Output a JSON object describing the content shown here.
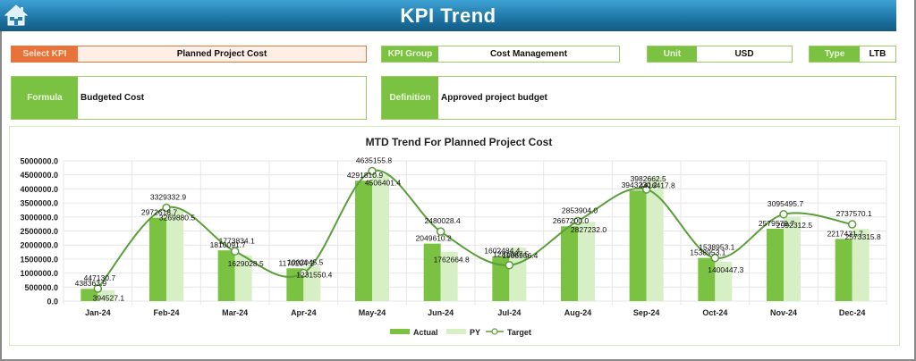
{
  "header": {
    "title": "KPI Trend",
    "home_icon": "home-icon"
  },
  "filters": {
    "select_kpi": {
      "label": "Select KPI",
      "value": "Planned Project Cost"
    },
    "kpi_group": {
      "label": "KPI Group",
      "value": "Cost Management"
    },
    "unit": {
      "label": "Unit",
      "value": "USD"
    },
    "type": {
      "label": "Type",
      "value": "LTB"
    }
  },
  "details": {
    "formula": {
      "label": "Formula",
      "value": "Budgeted Cost"
    },
    "definition": {
      "label": "Definition",
      "value": "Approved project budget"
    }
  },
  "colors": {
    "actual": "#7cc242",
    "py": "#d6efc4",
    "target": "#5a9e3a",
    "header": "#1f78a8",
    "kpi_accent": "#e8733a"
  },
  "chart_data": {
    "type": "bar",
    "title": "MTD Trend For Planned Project Cost",
    "xlabel": "",
    "ylabel": "",
    "ylim": [
      0,
      5000000
    ],
    "yticks": [
      "0.0",
      "500000.0",
      "1000000.0",
      "1500000.0",
      "2000000.0",
      "2500000.0",
      "3000000.0",
      "3500000.0",
      "4000000.0",
      "4500000.0",
      "5000000.0"
    ],
    "grid": true,
    "legend_position": "bottom",
    "categories": [
      "Jan-24",
      "Feb-24",
      "Mar-24",
      "Apr-24",
      "May-24",
      "Jun-24",
      "Jul-24",
      "Aug-24",
      "Sep-24",
      "Oct-24",
      "Nov-24",
      "Dec-24"
    ],
    "series": [
      {
        "name": "Actual",
        "kind": "bar",
        "values": [
          438363.9,
          2972618.7,
          1810091.7,
          1170204.2,
          4291810.9,
          2049610.2,
          1602484.4,
          2667200.0,
          3943230.2,
          1538953.1,
          2579579.7,
          2217431.7
        ]
      },
      {
        "name": "PY",
        "kind": "bar",
        "values": [
          394527.1,
          3269880.5,
          1629028.5,
          1231550.4,
          4506401.4,
          1762664.8,
          1906956.4,
          2827232.0,
          4416417.8,
          1400447.3,
          2992312.5,
          2573315.8
        ]
      },
      {
        "name": "Target",
        "kind": "smooth-line",
        "values": [
          447130.7,
          3329332.9,
          1773834.1,
          1002045.5,
          4635155.8,
          2480028.4,
          1281987.5,
          2853904.0,
          3982662.5,
          1538953.1,
          3095495.7,
          2737570.1
        ]
      }
    ],
    "legend": [
      "Actual",
      "PY",
      "Target"
    ]
  }
}
